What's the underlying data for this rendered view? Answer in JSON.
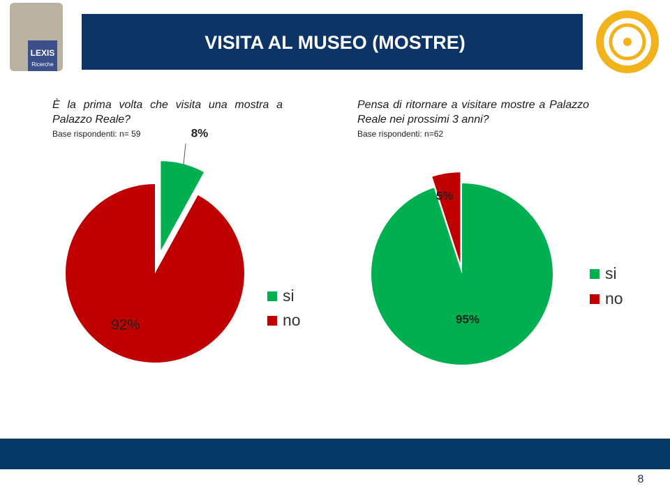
{
  "header": {
    "title": "VISITA AL MUSEO (MOSTRE)",
    "logo_lines": [
      "LEXIS",
      "Ricerche"
    ]
  },
  "page_number": "8",
  "chart_data": [
    {
      "type": "pie",
      "title": "È la prima volta che visita una mostra  a Palazzo Reale?",
      "subtitle": "Base rispondenti: n= 59",
      "categories": [
        "si",
        "no"
      ],
      "values": [
        8,
        92
      ],
      "value_labels": [
        "8%",
        "92%"
      ],
      "colors": [
        "#00b050",
        "#c00000"
      ]
    },
    {
      "type": "pie",
      "title": "Pensa di ritornare a visitare mostre a Palazzo Reale nei prossimi 3 anni?",
      "subtitle": "Base rispondenti: n=62",
      "categories": [
        "si",
        "no"
      ],
      "values": [
        95,
        5
      ],
      "value_labels": [
        "95%",
        "5%"
      ],
      "colors": [
        "#00b050",
        "#c00000"
      ]
    }
  ]
}
